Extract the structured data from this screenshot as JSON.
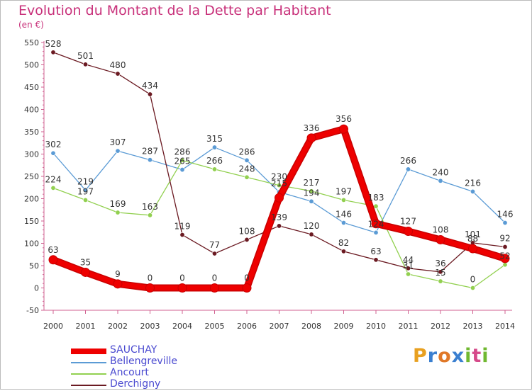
{
  "header": {
    "title": "Evolution du Montant de la Dette par Habitant",
    "unit": "(en €)"
  },
  "logo": {
    "letters": [
      "P",
      "r",
      "o",
      "x",
      "i",
      "t",
      "i"
    ],
    "colors": [
      "#e8a020",
      "#3a7fd0",
      "#e07828",
      "#3a7fd0",
      "#70b830",
      "#d64a8a",
      "#70b830"
    ]
  },
  "chart_data": {
    "type": "line",
    "title": "Evolution du Montant de la Dette par Habitant",
    "ylabel": "(en €)",
    "xlabel": "",
    "categories": [
      "2000",
      "2001",
      "2002",
      "2003",
      "2004",
      "2005",
      "2006",
      "2007",
      "2008",
      "2009",
      "2010",
      "2011",
      "2012",
      "2013",
      "2014"
    ],
    "ylim": [
      -50,
      550
    ],
    "yticks": [
      "-50",
      "0",
      "50",
      "100",
      "150",
      "200",
      "250",
      "300",
      "350",
      "400",
      "450",
      "500",
      "550"
    ],
    "legend_position": "bottom-left",
    "grid": false,
    "series": [
      {
        "name": "SAUCHAY",
        "color": "#ee0000",
        "emphasis": true,
        "values": [
          63,
          35,
          9,
          0,
          0,
          0,
          0,
          202,
          336,
          356,
          144,
          127,
          108,
          88,
          66
        ],
        "labels": [
          "63",
          "35",
          "9",
          "0",
          "0",
          "0",
          "0",
          "",
          "336",
          "356",
          "",
          "127",
          "108",
          "88",
          ""
        ]
      },
      {
        "name": "Bellengreville",
        "color": "#5b9bd5",
        "emphasis": false,
        "values": [
          302,
          219,
          307,
          287,
          265,
          315,
          286,
          215,
          194,
          146,
          124,
          266,
          240,
          216,
          146
        ],
        "labels": [
          "302",
          "219",
          "307",
          "287",
          "265",
          "315",
          "286",
          "215",
          "194",
          "146",
          "124",
          "266",
          "240",
          "216",
          "146"
        ]
      },
      {
        "name": "Ancourt",
        "color": "#92d050",
        "emphasis": false,
        "values": [
          224,
          197,
          169,
          163,
          286,
          266,
          248,
          230,
          217,
          197,
          183,
          31,
          15,
          0,
          52
        ],
        "labels": [
          "224",
          "197",
          "169",
          "163",
          "286",
          "266",
          "248",
          "230",
          "217",
          "197",
          "183",
          "31",
          "15",
          "0",
          "52"
        ]
      },
      {
        "name": "Derchigny",
        "color": "#6b1a22",
        "emphasis": false,
        "values": [
          528,
          501,
          480,
          434,
          119,
          77,
          108,
          139,
          120,
          82,
          63,
          44,
          36,
          101,
          92
        ],
        "labels": [
          "528",
          "501",
          "480",
          "434",
          "119",
          "77",
          "108",
          "139",
          "120",
          "82",
          "63",
          "44",
          "36",
          "101",
          "92"
        ]
      }
    ]
  }
}
